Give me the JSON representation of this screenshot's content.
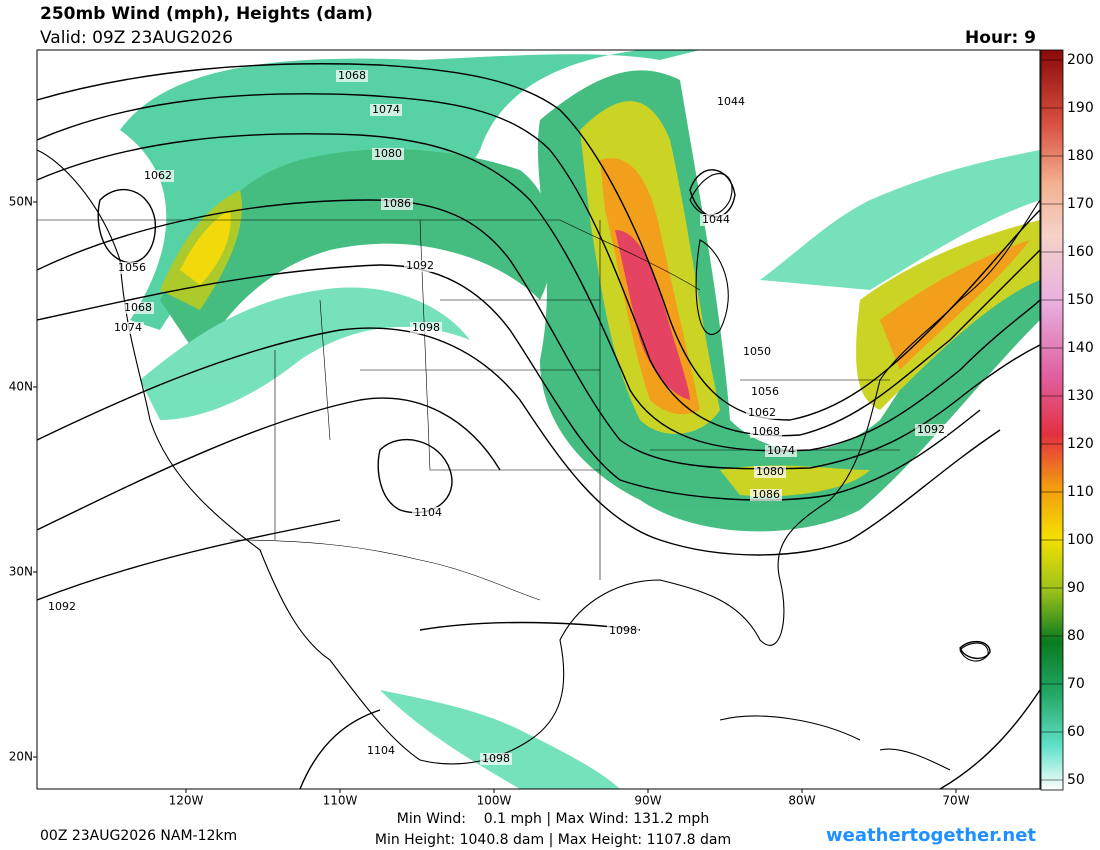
{
  "header": {
    "title": "250mb Wind (mph), Heights (dam)",
    "valid": "Valid: 09Z 23AUG2026",
    "hour": "Hour: 9"
  },
  "map": {
    "lat_labels": [
      "50N",
      "40N",
      "30N",
      "20N"
    ],
    "lon_labels": [
      "120W",
      "110W",
      "100W",
      "90W",
      "80W",
      "70W"
    ],
    "contour_labels": [
      "1068",
      "1074",
      "1080",
      "1086",
      "1092",
      "1098",
      "1062",
      "1056",
      "1068",
      "1074",
      "1044",
      "1044",
      "1050",
      "1056",
      "1062",
      "1068",
      "1074",
      "1080",
      "1086",
      "1092",
      "1104",
      "1092",
      "1098",
      "1104",
      "1098"
    ]
  },
  "colorbar": {
    "ticks": [
      "200",
      "190",
      "180",
      "170",
      "160",
      "150",
      "140",
      "130",
      "120",
      "110",
      "100",
      "90",
      "80",
      "70",
      "60",
      "50"
    ]
  },
  "footer": {
    "run": "00Z 23AUG2026 NAM-12km",
    "wind_stats": "Min Wind:    0.1 mph | Max Wind: 131.2 mph",
    "height_stats": "Min Height: 1040.8 dam | Max Height: 1107.8 dam",
    "site": "weathertogether.net"
  }
}
